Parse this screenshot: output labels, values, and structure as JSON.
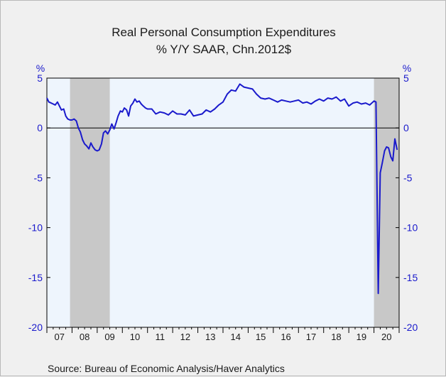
{
  "chart_data": {
    "type": "line",
    "title": "Real Personal Consumption Expenditures",
    "subtitle": "% Y/Y   SAAR, Chn.2012$",
    "ylabel_left": "%",
    "ylabel_right": "%",
    "source": "Source:  Bureau of Economic Analysis/Haver Analytics",
    "x_tick_labels": [
      "07",
      "08",
      "09",
      "10",
      "11",
      "12",
      "13",
      "14",
      "15",
      "16",
      "17",
      "18",
      "19",
      "20"
    ],
    "x_tick_years": [
      2007,
      2008,
      2009,
      2010,
      2011,
      2012,
      2013,
      2014,
      2015,
      2016,
      2017,
      2018,
      2019,
      2020
    ],
    "xlim": [
      2007.0,
      2021.0
    ],
    "ylim": [
      -20,
      5
    ],
    "y_ticks": [
      5,
      0,
      -5,
      -10,
      -15,
      -20
    ],
    "y_tick_labels": [
      "5",
      "0",
      "-5",
      "-10",
      "-15",
      "-20"
    ],
    "recession_shading": [
      [
        2007.92,
        2009.5
      ],
      [
        2020.0,
        2021.0
      ]
    ],
    "zero_line": 0,
    "line_color": "#1a1acc",
    "plot_bg": "#eef5fd",
    "shade_color": "#c8c8c8",
    "series": [
      {
        "x": [
          2007.0,
          2007.08,
          2007.17,
          2007.25,
          2007.33,
          2007.42,
          2007.5,
          2007.58,
          2007.67,
          2007.75,
          2007.83,
          2007.92,
          2008.0,
          2008.08,
          2008.17,
          2008.25,
          2008.33,
          2008.42,
          2008.5,
          2008.58,
          2008.67,
          2008.75,
          2008.83,
          2008.92,
          2009.0,
          2009.08,
          2009.17,
          2009.25,
          2009.33,
          2009.42,
          2009.5,
          2009.58,
          2009.67,
          2009.75,
          2009.83,
          2009.92,
          2010.0,
          2010.08,
          2010.17,
          2010.25,
          2010.33,
          2010.42,
          2010.5,
          2010.58,
          2010.67,
          2010.75,
          2010.83,
          2010.92,
          2011.0,
          2011.17,
          2011.33,
          2011.5,
          2011.67,
          2011.83,
          2012.0,
          2012.17,
          2012.33,
          2012.5,
          2012.67,
          2012.83,
          2013.0,
          2013.17,
          2013.33,
          2013.5,
          2013.67,
          2013.83,
          2014.0,
          2014.17,
          2014.33,
          2014.5,
          2014.67,
          2014.83,
          2015.0,
          2015.17,
          2015.33,
          2015.5,
          2015.67,
          2015.83,
          2016.0,
          2016.17,
          2016.33,
          2016.5,
          2016.67,
          2016.83,
          2017.0,
          2017.17,
          2017.33,
          2017.5,
          2017.67,
          2017.83,
          2018.0,
          2018.17,
          2018.33,
          2018.5,
          2018.67,
          2018.83,
          2019.0,
          2019.17,
          2019.33,
          2019.5,
          2019.67,
          2019.83,
          2020.0,
          2020.08,
          2020.17,
          2020.25,
          2020.33,
          2020.42,
          2020.5,
          2020.58,
          2020.67,
          2020.75,
          2020.83,
          2020.92
        ],
        "values": [
          3.0,
          2.6,
          2.5,
          2.4,
          2.3,
          2.6,
          2.2,
          1.8,
          1.9,
          1.2,
          0.9,
          0.8,
          0.8,
          0.9,
          0.7,
          0.0,
          -0.4,
          -1.2,
          -1.6,
          -1.8,
          -2.1,
          -1.5,
          -1.9,
          -2.2,
          -2.3,
          -2.2,
          -1.6,
          -0.5,
          -0.3,
          -0.6,
          -0.2,
          0.4,
          -0.1,
          0.5,
          1.2,
          1.7,
          1.6,
          2.0,
          1.8,
          1.2,
          2.2,
          2.5,
          2.9,
          2.6,
          2.7,
          2.4,
          2.2,
          2.0,
          1.9,
          1.9,
          1.4,
          1.6,
          1.5,
          1.3,
          1.7,
          1.4,
          1.4,
          1.3,
          1.8,
          1.2,
          1.3,
          1.4,
          1.8,
          1.6,
          1.9,
          2.3,
          2.6,
          3.4,
          3.8,
          3.7,
          4.4,
          4.1,
          4.0,
          3.9,
          3.4,
          3.0,
          2.9,
          3.0,
          2.8,
          2.6,
          2.8,
          2.7,
          2.6,
          2.7,
          2.8,
          2.5,
          2.6,
          2.4,
          2.7,
          2.9,
          2.7,
          3.0,
          2.9,
          3.1,
          2.7,
          2.9,
          2.2,
          2.5,
          2.6,
          2.4,
          2.5,
          2.3,
          2.7,
          2.6,
          -16.6,
          -4.5,
          -3.5,
          -2.3,
          -1.9,
          -2.0,
          -2.9,
          -3.3,
          -1.1,
          -2.2
        ]
      }
    ]
  }
}
